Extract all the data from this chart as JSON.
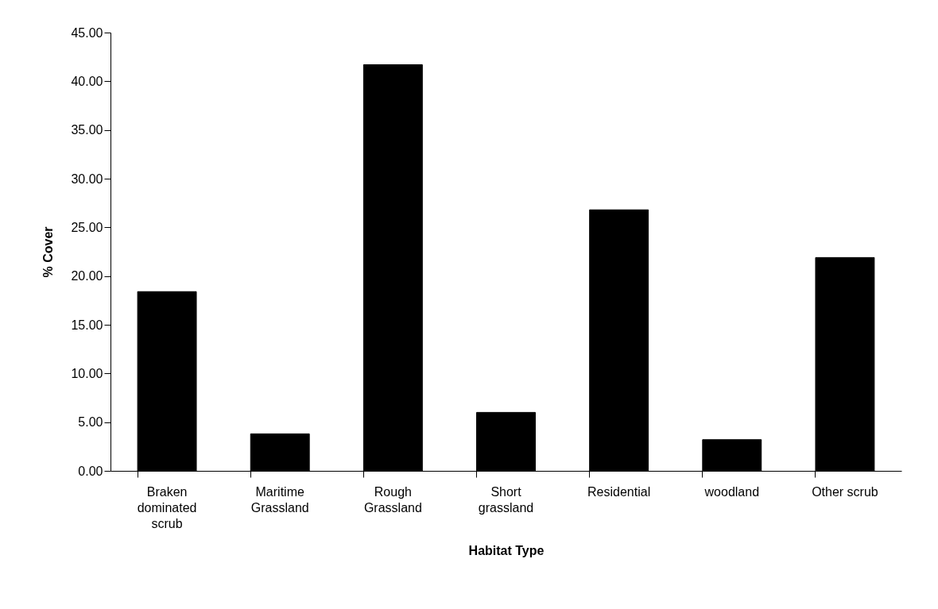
{
  "chart_data": {
    "type": "bar",
    "xlabel": "Habitat Type",
    "ylabel": "% Cover",
    "categories": [
      "Braken dominated scrub",
      "Maritime Grassland",
      "Rough Grassland",
      "Short grassland",
      "Residential",
      "woodland",
      "Other scrub"
    ],
    "values": [
      18.4,
      3.8,
      41.7,
      6.0,
      26.8,
      3.2,
      21.9
    ],
    "color": "#000000",
    "ylim": [
      0,
      45
    ],
    "yticks": [
      {
        "value": 0,
        "label": "0.00"
      },
      {
        "value": 5,
        "label": "5.00"
      },
      {
        "value": 10,
        "label": "10.00"
      },
      {
        "value": 15,
        "label": "15.00"
      },
      {
        "value": 20,
        "label": "20.00"
      },
      {
        "value": 25,
        "label": "25.00"
      },
      {
        "value": 30,
        "label": "30.00"
      },
      {
        "value": 35,
        "label": "35.00"
      },
      {
        "value": 40,
        "label": "40.00"
      },
      {
        "value": 45,
        "label": "45.00"
      }
    ],
    "grid": false
  }
}
